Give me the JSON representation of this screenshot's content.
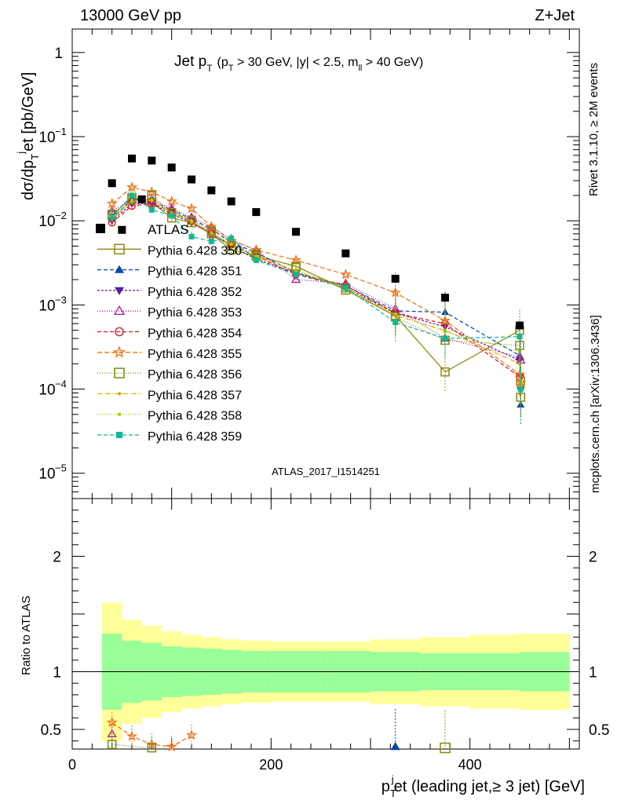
{
  "header": {
    "left": "13000 GeV pp",
    "right": "Z+Jet"
  },
  "title": {
    "main": "Jet p",
    "main_sub": "T",
    "cuts_open": "(p",
    "cuts_sub_t": "T",
    "cuts_mid": " > 30 GeV, |y| < 2.5, m",
    "cuts_sub_ll": "ll",
    "cuts_close": " > 40 GeV)"
  },
  "side_labels": {
    "rivet": "Rivet 3.1.10, ≥ 2M events",
    "mcplots": "mcplots.cern.ch [arXiv:1306.3436]"
  },
  "analysis_id": "ATLAS_2017_I1514251",
  "axes": {
    "ylabel_main": "dσ/dp",
    "ylabel_sub": "T",
    "ylabel_sup": "j",
    "ylabel_rest": "et [pb/GeV]",
    "ylabel_ratio": "Ratio to ATLAS",
    "xlabel_main": "p",
    "xlabel_sub": "T",
    "xlabel_sup": "j",
    "xlabel_rest": "et (leading jet,≥ 3 jet) [GeV]",
    "x_ticks": [
      "0",
      "200",
      "400"
    ],
    "y_ticks": [
      "1",
      "10",
      "10",
      "10",
      "10",
      "10"
    ],
    "y_tick_exp": [
      "",
      "−1",
      "−2",
      "−3",
      "−4",
      "−5"
    ],
    "ratio_ticks": [
      "2",
      "1",
      "0.5"
    ]
  },
  "chart_data": {
    "type": "scatter",
    "x_range": [
      0,
      510
    ],
    "y_range_log": [
      5e-06,
      1.9
    ],
    "ratio_range": [
      0.33,
      2.5
    ],
    "y_log": true,
    "legend_placement": "middle-left",
    "data_series": {
      "name": "ATLAS",
      "x": [
        40,
        50,
        60,
        70,
        80,
        100,
        120,
        140,
        160,
        185,
        225,
        275,
        325,
        375,
        450
      ],
      "y": [
        0.028,
        0.0078,
        0.055,
        0.018,
        0.052,
        0.043,
        0.031,
        0.023,
        0.017,
        0.0127,
        0.0074,
        0.0041,
        0.00205,
        0.00122,
        0.00057
      ]
    },
    "band_x": [
      30,
      50,
      70,
      90,
      110,
      130,
      150,
      170,
      200,
      250,
      300,
      350,
      400,
      450,
      500
    ],
    "band_inner": [
      0.33,
      0.27,
      0.25,
      0.22,
      0.21,
      0.2,
      0.19,
      0.18,
      0.18,
      0.18,
      0.17,
      0.16,
      0.16,
      0.17,
      0.18
    ],
    "band_outer": [
      0.6,
      0.45,
      0.4,
      0.35,
      0.32,
      0.3,
      0.28,
      0.27,
      0.26,
      0.26,
      0.28,
      0.3,
      0.32,
      0.33,
      0.35
    ],
    "mc_series": [
      {
        "name": "Pythia 6.428 350",
        "color": "#8b8b0d",
        "marker": "square-open",
        "dash": "",
        "values": [
          0.0115,
          0.019,
          0.0165,
          0.0108,
          0.0095,
          0.007,
          0.0045,
          0.0038,
          0.0029,
          0.0015,
          0.00075,
          0.00016,
          0.0005,
          0.000125
        ],
        "ratio_low": [
          {
            "x": 375,
            "r": 0.34
          }
        ]
      },
      {
        "name": "Pythia 6.428 351",
        "color": "#0047ab",
        "marker": "triangle-up",
        "dash": "5,3",
        "values": [
          0.0105,
          0.018,
          0.017,
          0.0135,
          0.0105,
          0.008,
          0.0055,
          0.0042,
          0.0024,
          0.0017,
          0.00085,
          0.00082,
          0.00025,
          6.5e-05
        ],
        "ratio_low": [
          {
            "x": 325,
            "r": 0.35
          }
        ]
      },
      {
        "name": "Pythia 6.428 352",
        "color": "#5a1aa8",
        "marker": "triangle-down",
        "dash": "3,2",
        "values": [
          0.01,
          0.016,
          0.016,
          0.012,
          0.0095,
          0.007,
          0.005,
          0.0035,
          0.0024,
          0.0016,
          0.0008,
          0.00055,
          0.00022,
          0.00014
        ],
        "ratio_low": []
      },
      {
        "name": "Pythia 6.428 353",
        "color": "#b0198f",
        "marker": "triangle-open",
        "dash": "1,2",
        "values": [
          0.013,
          0.018,
          0.018,
          0.014,
          0.011,
          0.0085,
          0.006,
          0.0045,
          0.002,
          0.0018,
          0.0009,
          0.0004,
          0.00024,
          0.00022
        ],
        "ratio_low": [
          {
            "x": 40,
            "r": 0.46
          }
        ]
      },
      {
        "name": "Pythia 6.428 354",
        "color": "#e01616",
        "marker": "circle-open",
        "dash": "5,3",
        "values": [
          0.0095,
          0.015,
          0.016,
          0.013,
          0.0098,
          0.007,
          0.0052,
          0.0038,
          0.0023,
          0.0017,
          0.0008,
          0.0006,
          0.00014,
          0.000105
        ],
        "ratio_low": []
      },
      {
        "name": "Pythia 6.428 355",
        "color": "#f07010",
        "marker": "star-open",
        "dash": "6,3",
        "values": [
          0.016,
          0.025,
          0.022,
          0.017,
          0.014,
          0.0085,
          0.0058,
          0.0045,
          0.0034,
          0.0023,
          0.0014,
          0.00065,
          0.00015,
          0.00012
        ],
        "ratio_low": [
          {
            "x": 40,
            "r": 0.56
          },
          {
            "x": 60,
            "r": 0.44
          },
          {
            "x": 80,
            "r": 0.37
          },
          {
            "x": 100,
            "r": 0.35
          },
          {
            "x": 120,
            "r": 0.45
          }
        ]
      },
      {
        "name": "Pythia 6.428 356",
        "color": "#7a8a10",
        "marker": "square-open",
        "dash": "1,2",
        "values": [
          0.012,
          0.018,
          0.02,
          0.0125,
          0.0102,
          0.0075,
          0.005,
          0.004,
          0.0028,
          0.0016,
          0.00072,
          0.00038,
          0.00033,
          8e-05
        ],
        "ratio_low": [
          {
            "x": 40,
            "r": 0.37
          },
          {
            "x": 80,
            "r": 0.34
          }
        ]
      },
      {
        "name": "Pythia 6.428 357",
        "color": "#d4b000",
        "marker": "dot",
        "dash": "6,2,1,2",
        "values": [
          0.0105,
          0.017,
          0.0175,
          0.0125,
          0.0098,
          0.0072,
          0.005,
          0.0038,
          0.0025,
          0.0016,
          0.00075,
          0.0005,
          0.0002,
          0.00011
        ],
        "ratio_low": []
      },
      {
        "name": "Pythia 6.428 358",
        "color": "#b8c808",
        "marker": "dot",
        "dash": "1,2",
        "values": [
          0.0105,
          0.0175,
          0.0175,
          0.0125,
          0.01,
          0.0072,
          0.0052,
          0.0038,
          0.0026,
          0.0016,
          0.00078,
          0.00048,
          0.00028,
          0.00012
        ],
        "ratio_low": []
      },
      {
        "name": "Pythia 6.428 359",
        "color": "#10b890",
        "marker": "square",
        "dash": "5,3",
        "values": [
          0.011,
          0.02,
          0.0135,
          0.0115,
          0.0065,
          0.0057,
          0.0062,
          0.0034,
          0.0023,
          0.0016,
          0.00062,
          0.0004,
          0.00042,
          0.0001
        ],
        "ratio_low": []
      }
    ],
    "mc_x": [
      40,
      60,
      80,
      100,
      120,
      140,
      160,
      185,
      225,
      275,
      325,
      375,
      450,
      451
    ]
  }
}
